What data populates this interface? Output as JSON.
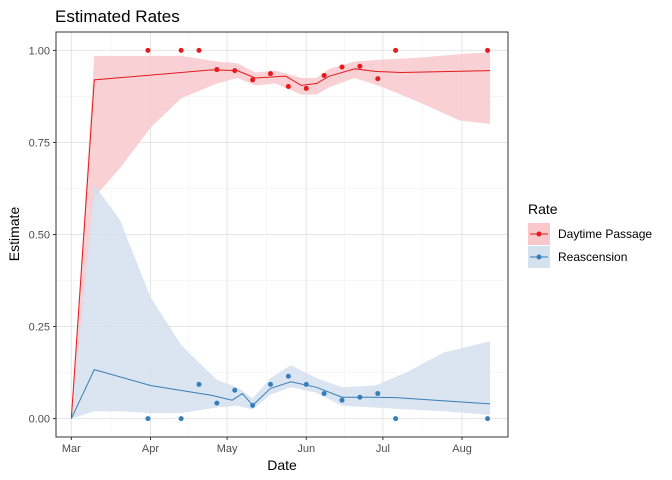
{
  "chart_data": {
    "type": "line",
    "title": "Estimated Rates",
    "xlabel": "Date",
    "ylabel": "Estimate",
    "x_tick_labels": [
      "Mar",
      "Apr",
      "May",
      "Jun",
      "Jul",
      "Aug"
    ],
    "x_ticks": [
      "2021-03-01",
      "2021-04-01",
      "2021-05-01",
      "2021-06-01",
      "2021-07-01",
      "2021-08-01"
    ],
    "xlim": [
      "2021-02-23",
      "2021-08-19"
    ],
    "y_tick_labels": [
      "0.00",
      "0.25",
      "0.50",
      "0.75",
      "1.00"
    ],
    "ylim": [
      -0.05,
      1.05
    ],
    "grid": true,
    "legend": {
      "title": "Rate",
      "position": "right"
    },
    "series": [
      {
        "name": "Daytime Passage",
        "color": "#e41a1c",
        "fill": "#f8c8cb",
        "line": [
          {
            "x": "2021-03-01",
            "y": 0.0
          },
          {
            "x": "2021-03-10",
            "y": 0.92
          },
          {
            "x": "2021-04-01",
            "y": 0.933
          },
          {
            "x": "2021-04-25",
            "y": 0.947
          },
          {
            "x": "2021-05-05",
            "y": 0.945
          },
          {
            "x": "2021-05-12",
            "y": 0.925
          },
          {
            "x": "2021-05-24",
            "y": 0.93
          },
          {
            "x": "2021-05-30",
            "y": 0.905
          },
          {
            "x": "2021-06-05",
            "y": 0.91
          },
          {
            "x": "2021-06-10",
            "y": 0.93
          },
          {
            "x": "2021-06-20",
            "y": 0.95
          },
          {
            "x": "2021-06-28",
            "y": 0.943
          },
          {
            "x": "2021-07-08",
            "y": 0.94
          },
          {
            "x": "2021-08-12",
            "y": 0.945
          }
        ],
        "ribbon": [
          {
            "x": "2021-03-01",
            "lower": 0.0,
            "upper": 0.0
          },
          {
            "x": "2021-03-10",
            "lower": 0.6,
            "upper": 0.985
          },
          {
            "x": "2021-03-20",
            "lower": 0.68,
            "upper": 0.985
          },
          {
            "x": "2021-04-01",
            "lower": 0.79,
            "upper": 0.985
          },
          {
            "x": "2021-04-13",
            "lower": 0.87,
            "upper": 0.985
          },
          {
            "x": "2021-04-27",
            "lower": 0.91,
            "upper": 0.97
          },
          {
            "x": "2021-05-05",
            "lower": 0.925,
            "upper": 0.965
          },
          {
            "x": "2021-05-12",
            "lower": 0.905,
            "upper": 0.94
          },
          {
            "x": "2021-05-20",
            "lower": 0.91,
            "upper": 0.945
          },
          {
            "x": "2021-05-30",
            "lower": 0.88,
            "upper": 0.925
          },
          {
            "x": "2021-06-05",
            "lower": 0.88,
            "upper": 0.925
          },
          {
            "x": "2021-06-10",
            "lower": 0.9,
            "upper": 0.95
          },
          {
            "x": "2021-06-20",
            "lower": 0.925,
            "upper": 0.97
          },
          {
            "x": "2021-07-01",
            "lower": 0.9,
            "upper": 0.975
          },
          {
            "x": "2021-07-15",
            "lower": 0.86,
            "upper": 0.98
          },
          {
            "x": "2021-07-31",
            "lower": 0.81,
            "upper": 0.99
          },
          {
            "x": "2021-08-12",
            "lower": 0.8,
            "upper": 0.995
          }
        ],
        "points": [
          {
            "x": "2021-03-31",
            "y": 1.0
          },
          {
            "x": "2021-04-13",
            "y": 1.0
          },
          {
            "x": "2021-04-20",
            "y": 1.0
          },
          {
            "x": "2021-04-27",
            "y": 0.948
          },
          {
            "x": "2021-05-04",
            "y": 0.945
          },
          {
            "x": "2021-05-11",
            "y": 0.92
          },
          {
            "x": "2021-05-18",
            "y": 0.937
          },
          {
            "x": "2021-05-25",
            "y": 0.902
          },
          {
            "x": "2021-06-01",
            "y": 0.897
          },
          {
            "x": "2021-06-08",
            "y": 0.932
          },
          {
            "x": "2021-06-15",
            "y": 0.955
          },
          {
            "x": "2021-06-22",
            "y": 0.957
          },
          {
            "x": "2021-06-29",
            "y": 0.923
          },
          {
            "x": "2021-07-06",
            "y": 1.0
          },
          {
            "x": "2021-08-11",
            "y": 1.0
          }
        ]
      },
      {
        "name": "Reascension",
        "color": "#377eb8",
        "fill": "#d4e1ee",
        "line": [
          {
            "x": "2021-03-01",
            "y": 0.0
          },
          {
            "x": "2021-03-10",
            "y": 0.133
          },
          {
            "x": "2021-04-01",
            "y": 0.09
          },
          {
            "x": "2021-04-25",
            "y": 0.063
          },
          {
            "x": "2021-05-03",
            "y": 0.05
          },
          {
            "x": "2021-05-07",
            "y": 0.068
          },
          {
            "x": "2021-05-11",
            "y": 0.036
          },
          {
            "x": "2021-05-18",
            "y": 0.082
          },
          {
            "x": "2021-05-26",
            "y": 0.1
          },
          {
            "x": "2021-06-05",
            "y": 0.085
          },
          {
            "x": "2021-06-15",
            "y": 0.058
          },
          {
            "x": "2021-06-28",
            "y": 0.058
          },
          {
            "x": "2021-07-06",
            "y": 0.057
          },
          {
            "x": "2021-08-12",
            "y": 0.04
          }
        ],
        "ribbon": [
          {
            "x": "2021-03-01",
            "lower": 0.0,
            "upper": 0.0
          },
          {
            "x": "2021-03-10",
            "lower": 0.02,
            "upper": 0.635
          },
          {
            "x": "2021-03-20",
            "lower": 0.02,
            "upper": 0.54
          },
          {
            "x": "2021-04-01",
            "lower": 0.015,
            "upper": 0.33
          },
          {
            "x": "2021-04-13",
            "lower": 0.015,
            "upper": 0.2
          },
          {
            "x": "2021-04-27",
            "lower": 0.03,
            "upper": 0.105
          },
          {
            "x": "2021-05-05",
            "lower": 0.035,
            "upper": 0.085
          },
          {
            "x": "2021-05-11",
            "lower": 0.025,
            "upper": 0.055
          },
          {
            "x": "2021-05-18",
            "lower": 0.065,
            "upper": 0.11
          },
          {
            "x": "2021-05-26",
            "lower": 0.085,
            "upper": 0.145
          },
          {
            "x": "2021-06-05",
            "lower": 0.07,
            "upper": 0.11
          },
          {
            "x": "2021-06-15",
            "lower": 0.035,
            "upper": 0.085
          },
          {
            "x": "2021-06-28",
            "lower": 0.03,
            "upper": 0.09
          },
          {
            "x": "2021-07-10",
            "lower": 0.025,
            "upper": 0.125
          },
          {
            "x": "2021-07-25",
            "lower": 0.02,
            "upper": 0.18
          },
          {
            "x": "2021-08-12",
            "lower": 0.01,
            "upper": 0.21
          }
        ],
        "points": [
          {
            "x": "2021-03-31",
            "y": 0.0
          },
          {
            "x": "2021-04-13",
            "y": 0.0
          },
          {
            "x": "2021-04-20",
            "y": 0.093
          },
          {
            "x": "2021-04-27",
            "y": 0.042
          },
          {
            "x": "2021-05-04",
            "y": 0.077
          },
          {
            "x": "2021-05-11",
            "y": 0.036
          },
          {
            "x": "2021-05-18",
            "y": 0.093
          },
          {
            "x": "2021-05-25",
            "y": 0.115
          },
          {
            "x": "2021-06-01",
            "y": 0.093
          },
          {
            "x": "2021-06-08",
            "y": 0.068
          },
          {
            "x": "2021-06-15",
            "y": 0.05
          },
          {
            "x": "2021-06-22",
            "y": 0.058
          },
          {
            "x": "2021-06-29",
            "y": 0.068
          },
          {
            "x": "2021-07-06",
            "y": 0.0
          },
          {
            "x": "2021-08-11",
            "y": 0.0
          }
        ]
      }
    ]
  }
}
